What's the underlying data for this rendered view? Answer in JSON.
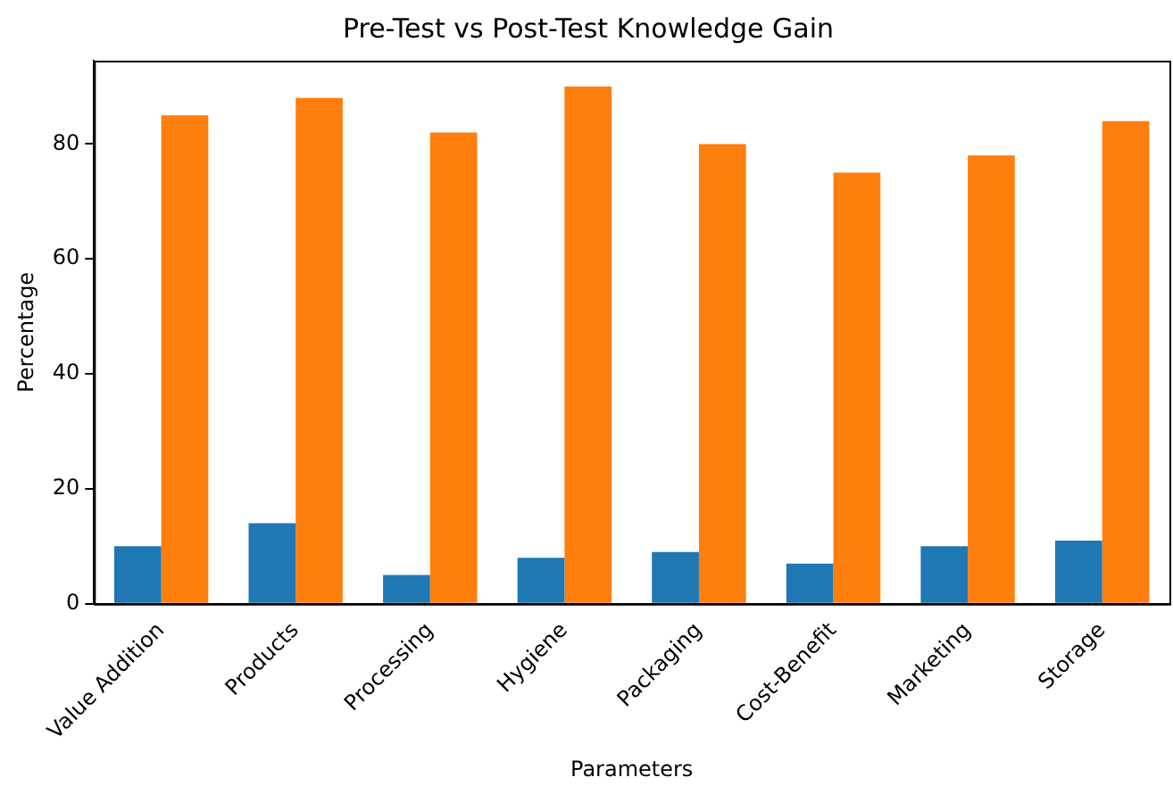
{
  "chart_data": {
    "type": "bar",
    "title": "Pre-Test vs Post-Test Knowledge Gain",
    "xlabel": "Parameters",
    "ylabel": "Percentage",
    "categories": [
      "Value Addition",
      "Products",
      "Processing",
      "Hygiene",
      "Packaging",
      "Cost-Benefit",
      "Marketing",
      "Storage"
    ],
    "series": [
      {
        "color": "#1f77b4",
        "values": [
          10,
          14,
          5,
          8,
          9,
          7,
          10,
          11
        ]
      },
      {
        "color": "#ff7f0e",
        "values": [
          85,
          88,
          82,
          90,
          80,
          75,
          78,
          84
        ]
      }
    ],
    "ylim": [
      0,
      94.5
    ],
    "yticks": [
      0,
      20,
      40,
      60,
      80
    ],
    "grid": false,
    "legend": false
  }
}
